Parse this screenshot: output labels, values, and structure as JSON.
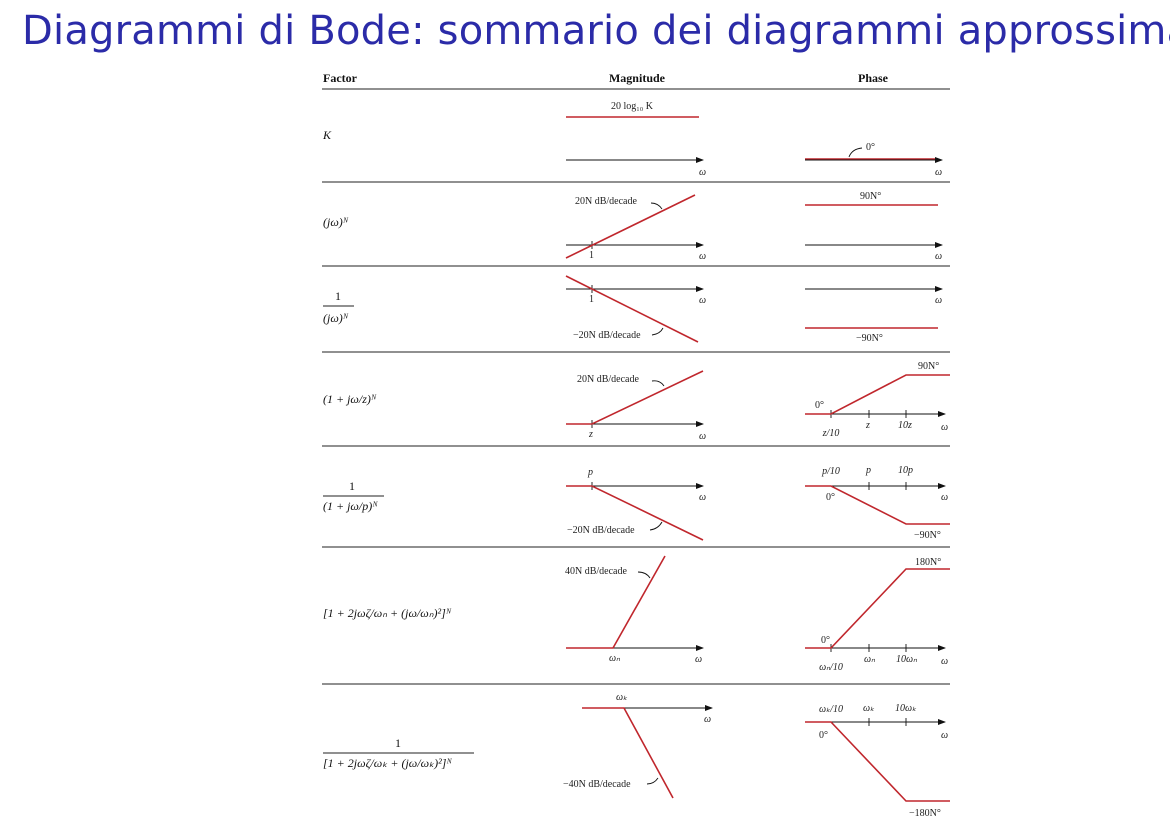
{
  "slide": {
    "title": "Diagrammi di Bode: sommario dei diagrammi approssimati"
  },
  "table": {
    "headers": {
      "factor": "Factor",
      "magnitude": "Magnitude",
      "phase": "Phase"
    },
    "omega": "ω",
    "rows": [
      {
        "factor": "K",
        "mag_label": "20 log₁₀ K",
        "phase_label": "0°"
      },
      {
        "factor": "(jω)ᴺ",
        "mag_label": "20N dB/decade",
        "mag_tick": "1",
        "phase_label": "90N°"
      },
      {
        "factor_num": "1",
        "factor_den": "(jω)ᴺ",
        "mag_label": "−20N dB/decade",
        "mag_tick": "1",
        "phase_label": "−90N°"
      },
      {
        "factor": "(1 + jω/z)ᴺ",
        "mag_label": "20N dB/decade",
        "mag_tick": "z",
        "phase_start": "0°",
        "phase_end": "90N°",
        "phase_ticks": [
          "z/10",
          "z",
          "10z"
        ]
      },
      {
        "factor_num": "1",
        "factor_den": "(1 + jω/p)ᴺ",
        "mag_label": "−20N dB/decade",
        "mag_tick": "p",
        "phase_start": "0°",
        "phase_end": "−90N°",
        "phase_ticks": [
          "p/10",
          "p",
          "10p"
        ]
      },
      {
        "factor": "[1 + 2jωζ/ωₙ + (jω/ωₙ)²]ᴺ",
        "mag_label": "40N dB/decade",
        "mag_tick": "ωₙ",
        "phase_start": "0°",
        "phase_end": "180N°",
        "phase_ticks": [
          "ωₙ/10",
          "ωₙ",
          "10ωₙ"
        ]
      },
      {
        "factor_num": "1",
        "factor_den": "[1 + 2jωζ/ωₖ + (jω/ωₖ)²]ᴺ",
        "mag_label": "−40N dB/decade",
        "mag_tick": "ωₖ",
        "phase_start": "0°",
        "phase_end": "−180N°",
        "phase_ticks": [
          "ωₖ/10",
          "ωₖ",
          "10ωₖ"
        ]
      }
    ]
  },
  "colors": {
    "title": "#2b2ba8",
    "curve": "#c0272d"
  }
}
